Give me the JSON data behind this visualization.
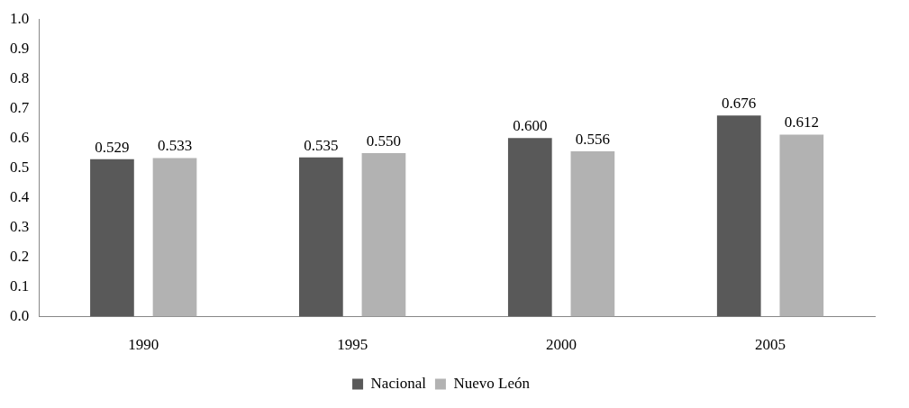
{
  "chart_data": {
    "type": "bar",
    "categories": [
      "1990",
      "1995",
      "2000",
      "2005"
    ],
    "series": [
      {
        "name": "Nacional",
        "color": "#595959",
        "values": [
          0.529,
          0.535,
          0.6,
          0.676
        ],
        "value_labels": [
          "0.529",
          "0.535",
          "0.600",
          "0.676"
        ]
      },
      {
        "name": "Nuevo León",
        "color": "#b2b2b2",
        "values": [
          0.533,
          0.55,
          0.556,
          0.612
        ],
        "value_labels": [
          "0.533",
          "0.550",
          "0.556",
          "0.612"
        ]
      }
    ],
    "ylim": [
      0,
      1
    ],
    "yticks": [
      {
        "value": 0,
        "label": "0.0"
      },
      {
        "value": 0.1,
        "label": "0.1"
      },
      {
        "value": 0.2,
        "label": "0.2"
      },
      {
        "value": 0.3,
        "label": "0.3"
      },
      {
        "value": 0.4,
        "label": "0.4"
      },
      {
        "value": 0.5,
        "label": "0.5"
      },
      {
        "value": 0.6,
        "label": "0.6"
      },
      {
        "value": 0.7,
        "label": "0.7"
      },
      {
        "value": 0.8,
        "label": "0.8"
      },
      {
        "value": 0.9,
        "label": "0.9"
      },
      {
        "value": 1,
        "label": "1.0"
      }
    ],
    "grid": false,
    "legend": "bottom"
  }
}
